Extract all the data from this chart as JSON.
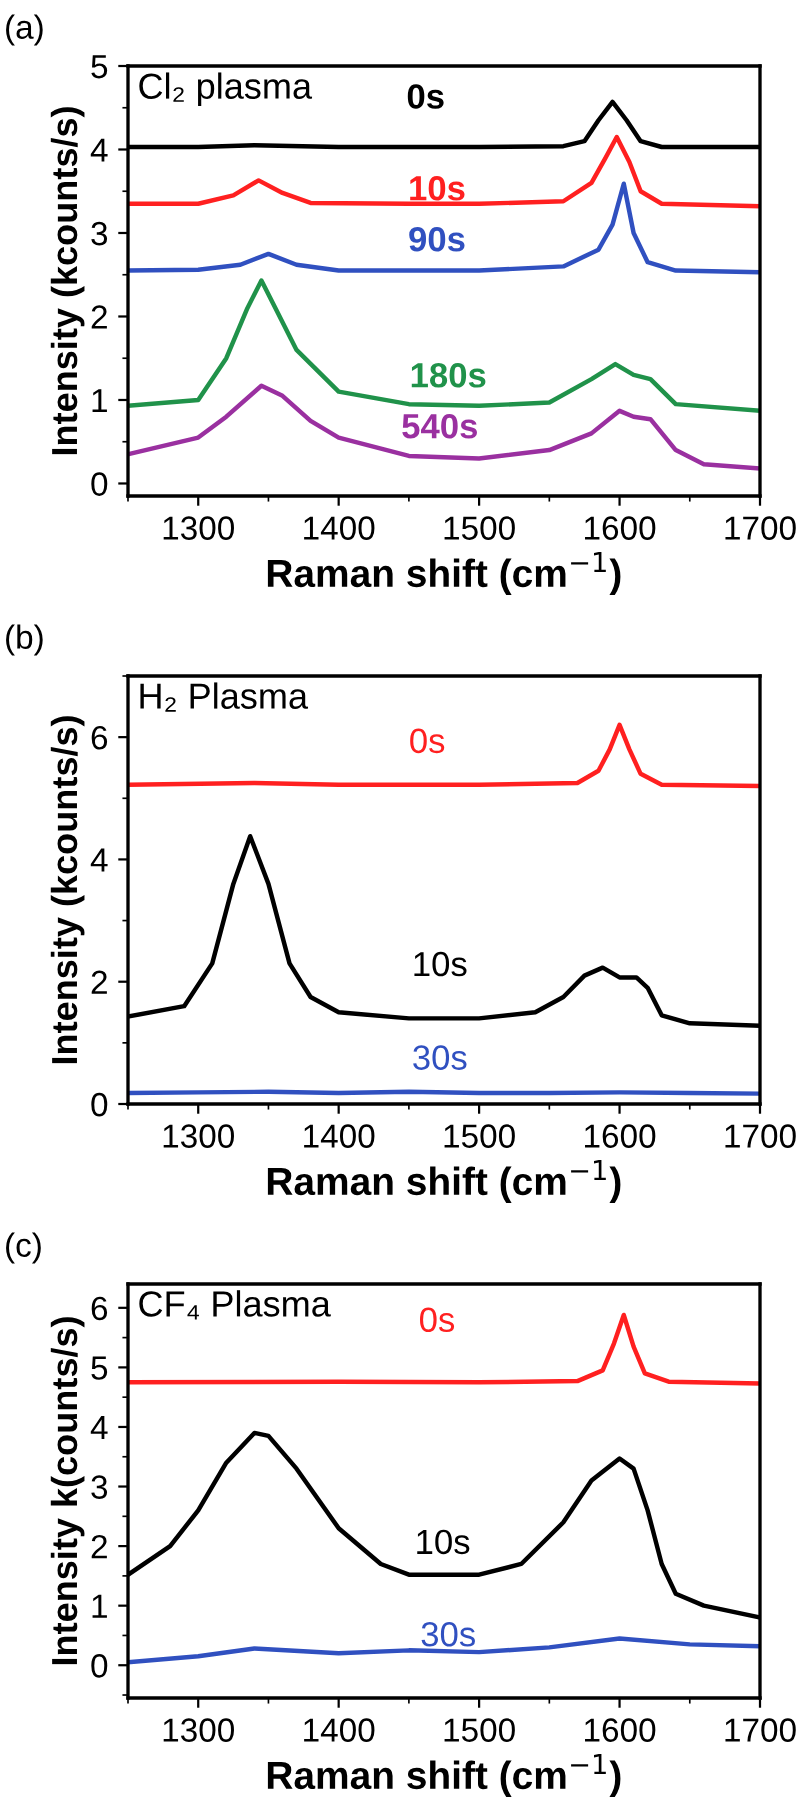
{
  "chart_data": [
    {
      "type": "line",
      "title": "Cl₂ plasma",
      "annotations": [
        "(a)"
      ],
      "xlabel": "Raman shift (cm$^{−1}$)",
      "ylabel": "Intensity (kcounts/s)",
      "xlim": [
        1250,
        1700
      ],
      "xticks": [
        1300,
        1400,
        1500,
        1600,
        1700
      ],
      "ylim": [
        -0.15,
        5
      ],
      "yticks": [
        0,
        1,
        2,
        3,
        4,
        5
      ],
      "grid": false,
      "legend": false,
      "marker": "none",
      "line_style": "solid",
      "series": [
        {
          "name": "0s",
          "color": "#000000",
          "x": [
            1250,
            1300,
            1340,
            1400,
            1500,
            1560,
            1575,
            1585,
            1595,
            1605,
            1615,
            1630,
            1700
          ],
          "values": [
            4.03,
            4.03,
            4.05,
            4.03,
            4.03,
            4.04,
            4.1,
            4.35,
            4.57,
            4.35,
            4.1,
            4.03,
            4.03
          ]
        },
        {
          "name": "10s",
          "color": "#ff2020",
          "x": [
            1250,
            1300,
            1325,
            1343,
            1360,
            1380,
            1450,
            1500,
            1560,
            1580,
            1590,
            1598,
            1607,
            1615,
            1630,
            1700
          ],
          "values": [
            3.35,
            3.35,
            3.45,
            3.63,
            3.48,
            3.36,
            3.35,
            3.35,
            3.38,
            3.6,
            3.9,
            4.15,
            3.85,
            3.5,
            3.35,
            3.32
          ]
        },
        {
          "name": "90s",
          "color": "#3050c0",
          "x": [
            1250,
            1300,
            1330,
            1350,
            1370,
            1400,
            1500,
            1560,
            1585,
            1595,
            1603,
            1610,
            1620,
            1640,
            1700
          ],
          "values": [
            2.55,
            2.56,
            2.62,
            2.75,
            2.62,
            2.55,
            2.55,
            2.6,
            2.8,
            3.1,
            3.59,
            3.0,
            2.65,
            2.55,
            2.53
          ]
        },
        {
          "name": "180s",
          "color": "#20924a",
          "x": [
            1250,
            1300,
            1320,
            1335,
            1345,
            1355,
            1370,
            1400,
            1450,
            1500,
            1550,
            1580,
            1597,
            1610,
            1622,
            1640,
            1700
          ],
          "values": [
            0.93,
            1.0,
            1.5,
            2.1,
            2.43,
            2.1,
            1.6,
            1.1,
            0.95,
            0.93,
            0.97,
            1.25,
            1.43,
            1.3,
            1.25,
            0.95,
            0.87
          ]
        },
        {
          "name": "540s",
          "color": "#9a30a0",
          "x": [
            1250,
            1300,
            1320,
            1345,
            1360,
            1380,
            1400,
            1450,
            1500,
            1550,
            1580,
            1600,
            1610,
            1622,
            1640,
            1660,
            1700
          ],
          "values": [
            0.35,
            0.55,
            0.8,
            1.17,
            1.05,
            0.75,
            0.55,
            0.33,
            0.3,
            0.4,
            0.6,
            0.87,
            0.8,
            0.77,
            0.4,
            0.23,
            0.18
          ]
        }
      ]
    },
    {
      "type": "line",
      "title": "H₂ Plasma",
      "annotations": [
        "(b)"
      ],
      "xlabel": "Raman shift (cm$^{−1}$)",
      "ylabel": "Intensity (kcounts/s)",
      "xlim": [
        1250,
        1700
      ],
      "xticks": [
        1300,
        1400,
        1500,
        1600,
        1700
      ],
      "ylim": [
        0,
        7
      ],
      "yticks": [
        0,
        2,
        4,
        6
      ],
      "grid": false,
      "legend": false,
      "marker": "none",
      "line_style": "solid",
      "series": [
        {
          "name": "0s",
          "color": "#ff2020",
          "x": [
            1250,
            1340,
            1400,
            1500,
            1570,
            1585,
            1593,
            1600,
            1607,
            1615,
            1630,
            1700
          ],
          "values": [
            5.22,
            5.25,
            5.22,
            5.22,
            5.25,
            5.45,
            5.8,
            6.2,
            5.8,
            5.4,
            5.22,
            5.2
          ]
        },
        {
          "name": "10s",
          "color": "#000000",
          "x": [
            1250,
            1290,
            1310,
            1325,
            1337,
            1350,
            1365,
            1380,
            1400,
            1450,
            1500,
            1540,
            1560,
            1575,
            1588,
            1600,
            1612,
            1620,
            1630,
            1650,
            1700
          ],
          "values": [
            1.43,
            1.6,
            2.3,
            3.6,
            4.38,
            3.6,
            2.3,
            1.75,
            1.5,
            1.4,
            1.4,
            1.5,
            1.75,
            2.1,
            2.23,
            2.07,
            2.07,
            1.9,
            1.45,
            1.32,
            1.28
          ]
        },
        {
          "name": "30s",
          "color": "#3050c0",
          "x": [
            1250,
            1300,
            1350,
            1400,
            1450,
            1500,
            1550,
            1600,
            1650,
            1700
          ],
          "values": [
            0.18,
            0.19,
            0.2,
            0.18,
            0.2,
            0.18,
            0.18,
            0.19,
            0.18,
            0.17
          ]
        }
      ]
    },
    {
      "type": "line",
      "title": "CF₄ Plasma",
      "annotations": [
        "(c)"
      ],
      "xlabel": "Raman shift (cm$^{−1}$)",
      "ylabel": "Intensity k(counts/s)",
      "xlim": [
        1250,
        1700
      ],
      "xticks": [
        1300,
        1400,
        1500,
        1600,
        1700
      ],
      "ylim": [
        -0.55,
        6.4
      ],
      "yticks": [
        0,
        1,
        2,
        3,
        4,
        5,
        6
      ],
      "grid": false,
      "legend": false,
      "marker": "none",
      "line_style": "solid",
      "series": [
        {
          "name": "0s",
          "color": "#ff2020",
          "x": [
            1250,
            1400,
            1500,
            1570,
            1588,
            1596,
            1603,
            1610,
            1618,
            1635,
            1700
          ],
          "values": [
            4.75,
            4.76,
            4.75,
            4.77,
            4.95,
            5.4,
            5.88,
            5.35,
            4.9,
            4.76,
            4.73
          ]
        },
        {
          "name": "10s",
          "color": "#000000",
          "x": [
            1250,
            1280,
            1300,
            1320,
            1340,
            1350,
            1370,
            1400,
            1430,
            1450,
            1500,
            1530,
            1560,
            1580,
            1600,
            1610,
            1620,
            1630,
            1640,
            1660,
            1700
          ],
          "values": [
            1.52,
            2.0,
            2.6,
            3.4,
            3.9,
            3.85,
            3.3,
            2.3,
            1.7,
            1.52,
            1.52,
            1.7,
            2.4,
            3.1,
            3.47,
            3.3,
            2.6,
            1.7,
            1.2,
            1.0,
            0.8
          ]
        },
        {
          "name": "30s",
          "color": "#3050c0",
          "x": [
            1250,
            1300,
            1340,
            1400,
            1450,
            1500,
            1550,
            1600,
            1650,
            1700
          ],
          "values": [
            0.05,
            0.15,
            0.28,
            0.2,
            0.25,
            0.22,
            0.3,
            0.45,
            0.35,
            0.32
          ]
        }
      ]
    }
  ]
}
